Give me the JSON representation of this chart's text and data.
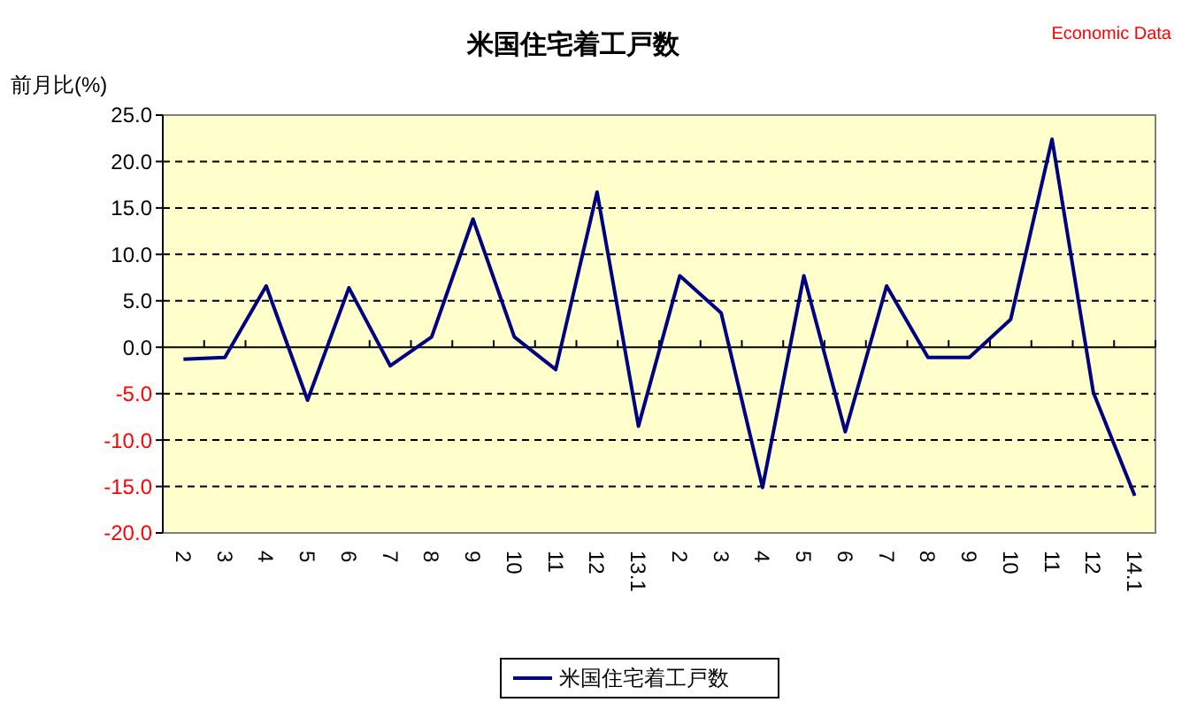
{
  "chart_data": {
    "type": "line",
    "title": "米国住宅着工戸数",
    "ylabel": "前月比(%)",
    "annotations": [
      "Economic Data"
    ],
    "categories": [
      "2",
      "3",
      "4",
      "5",
      "6",
      "7",
      "8",
      "9",
      "10",
      "11",
      "12",
      "13.1",
      "2",
      "3",
      "4",
      "5",
      "6",
      "7",
      "8",
      "9",
      "10",
      "11",
      "12",
      "14.1"
    ],
    "series": [
      {
        "name": "米国住宅着工戸数",
        "color": "#000080",
        "values": [
          -1.3,
          -1.1,
          6.6,
          -5.7,
          6.4,
          -2.0,
          1.1,
          13.8,
          1.1,
          -2.4,
          16.7,
          -8.5,
          7.7,
          3.7,
          -15.1,
          7.7,
          -9.1,
          6.6,
          -1.1,
          -1.1,
          3.0,
          22.4,
          -4.9,
          -16.0
        ]
      }
    ],
    "ylim": [
      -20,
      25
    ],
    "yticks": [
      {
        "value": -20,
        "label": "-20.0"
      },
      {
        "value": -15,
        "label": "-15.0"
      },
      {
        "value": -10,
        "label": "-10.0"
      },
      {
        "value": -5,
        "label": "-5.0"
      },
      {
        "value": 0,
        "label": "0.0"
      },
      {
        "value": 5,
        "label": "5.0"
      },
      {
        "value": 10,
        "label": "10.0"
      },
      {
        "value": 15,
        "label": "15.0"
      },
      {
        "value": 20,
        "label": "20.0"
      },
      {
        "value": 25,
        "label": "25.0"
      }
    ],
    "grid": "y",
    "legend": "bottom",
    "marker": "none",
    "line_style": "solid"
  }
}
